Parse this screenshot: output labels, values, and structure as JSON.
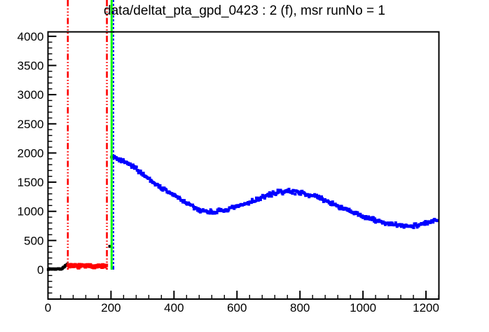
{
  "window": {
    "background": "#ffffff"
  },
  "title": "data/deltat_pta_gpd_0423 : 2 (f), msr runNo = 1",
  "chart_data": {
    "type": "scatter",
    "title": "data/deltat_pta_gpd_0423 : 2 (f), msr runNo = 1",
    "xlabel": "",
    "ylabel": "",
    "xlim": [
      0,
      1241
    ],
    "ylim": [
      -504,
      4076
    ],
    "grid": false,
    "legend": null,
    "axis_color": "#000000",
    "background_color": "#ffffff",
    "x_major_ticks": [
      0,
      200,
      400,
      600,
      800,
      1000,
      1200
    ],
    "x_minor_step": 40,
    "y_major_ticks": [
      0,
      500,
      1000,
      1500,
      2000,
      2500,
      3000,
      3500,
      4000
    ],
    "y_minor_step": 100,
    "series": [
      {
        "name": "raw-histogram-before-background-window",
        "color": "#000000",
        "marker_px": 4,
        "point_step": 2.0,
        "noise_peak_to_peak": 20,
        "trend": [
          [
            1,
            12
          ],
          [
            40,
            12
          ],
          [
            46,
            20
          ],
          [
            52,
            55
          ],
          [
            58,
            82
          ],
          [
            62,
            88
          ]
        ]
      },
      {
        "name": "background-window-histogram",
        "color": "#ff0000",
        "marker_px": 5,
        "point_step": 2.2,
        "noise_peak_to_peak": 60,
        "trend": [
          [
            64,
            62
          ],
          [
            187,
            62
          ]
        ]
      },
      {
        "name": "decay-signal-histogram",
        "color": "#0000ff",
        "marker_px": 4,
        "point_step": 2.2,
        "noise_peak_to_peak": 88,
        "trend": [
          [
            204,
            1945
          ],
          [
            215,
            1905
          ],
          [
            225,
            1880
          ],
          [
            240,
            1850
          ],
          [
            260,
            1800
          ],
          [
            280,
            1725
          ],
          [
            300,
            1645
          ],
          [
            320,
            1560
          ],
          [
            340,
            1475
          ],
          [
            360,
            1400
          ],
          [
            380,
            1335
          ],
          [
            400,
            1280
          ],
          [
            420,
            1210
          ],
          [
            440,
            1140
          ],
          [
            460,
            1075
          ],
          [
            480,
            1025
          ],
          [
            500,
            1000
          ],
          [
            520,
            990
          ],
          [
            540,
            998
          ],
          [
            560,
            1015
          ],
          [
            580,
            1042
          ],
          [
            600,
            1078
          ],
          [
            620,
            1115
          ],
          [
            640,
            1155
          ],
          [
            660,
            1198
          ],
          [
            680,
            1240
          ],
          [
            700,
            1280
          ],
          [
            720,
            1312
          ],
          [
            740,
            1333
          ],
          [
            760,
            1344
          ],
          [
            780,
            1340
          ],
          [
            800,
            1325
          ],
          [
            820,
            1300
          ],
          [
            840,
            1268
          ],
          [
            860,
            1230
          ],
          [
            880,
            1188
          ],
          [
            900,
            1140
          ],
          [
            920,
            1090
          ],
          [
            940,
            1040
          ],
          [
            960,
            995
          ],
          [
            980,
            955
          ],
          [
            1000,
            915
          ],
          [
            1020,
            878
          ],
          [
            1040,
            845
          ],
          [
            1060,
            815
          ],
          [
            1080,
            790
          ],
          [
            1100,
            768
          ],
          [
            1120,
            752
          ],
          [
            1140,
            748
          ],
          [
            1160,
            756
          ],
          [
            1180,
            774
          ],
          [
            1200,
            798
          ],
          [
            1220,
            822
          ],
          [
            1237,
            845
          ]
        ]
      }
    ],
    "extra_points": [
      {
        "name": "edge-bin-black",
        "color": "#000000",
        "x": 196,
        "y": 400,
        "marker_px": 4
      },
      {
        "name": "t0-bin-black",
        "color": "#000000",
        "x": 202,
        "y": 1930,
        "marker_px": 4
      },
      {
        "name": "first-bin-blue",
        "color": "#0000ff",
        "x": 206,
        "y": 25,
        "marker_px": 4
      }
    ],
    "vlines": [
      {
        "name": "background-range-start-line",
        "x": 63,
        "color": "#ff0000",
        "style": "dash-dot-dot",
        "width": 2.6,
        "bottom_value": 0,
        "extends_above_frame": true
      },
      {
        "name": "background-range-end-line",
        "x": 187,
        "color": "#ff0000",
        "style": "dash-dot-dot",
        "width": 2.6,
        "bottom_value": 0,
        "extends_above_frame": true
      },
      {
        "name": "t0-line",
        "x": 202,
        "color": "#00ff00",
        "style": "solid",
        "width": 3.0,
        "bottom_value": 0,
        "extends_above_frame": true
      },
      {
        "name": "first-good-bin-line",
        "x": 208,
        "color": "#0000ff",
        "style": "dashed",
        "width": 2.0,
        "bottom_value": 0,
        "extends_above_frame": true
      }
    ]
  }
}
